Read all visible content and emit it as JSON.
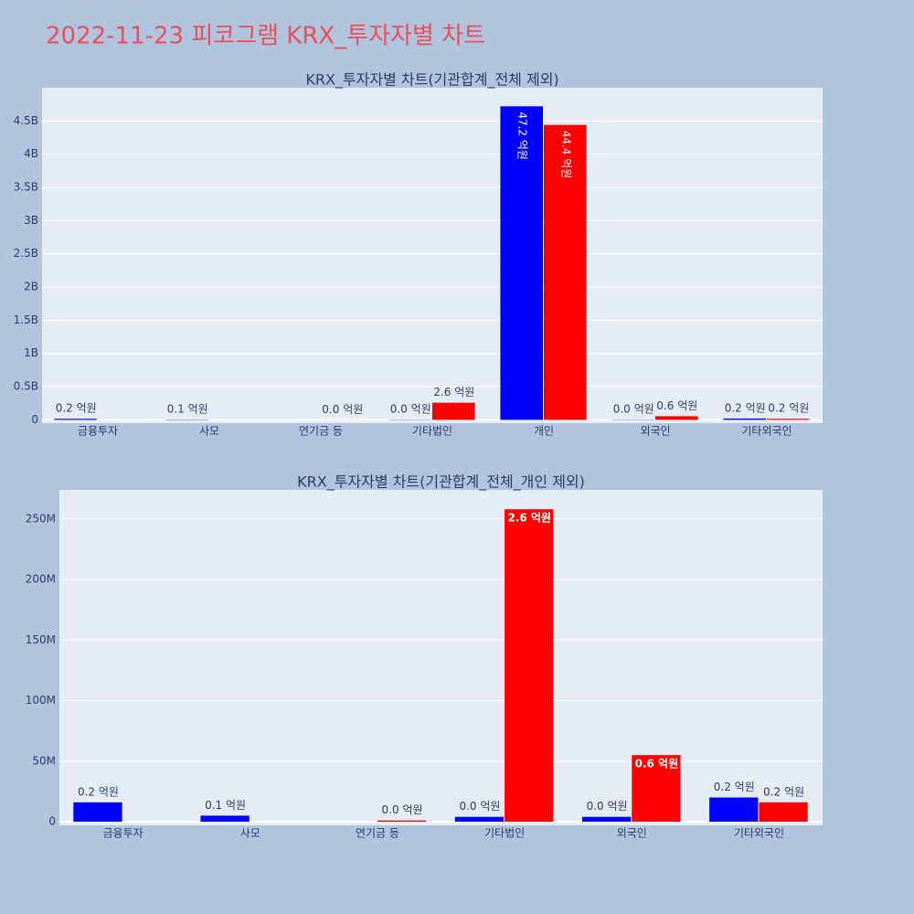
{
  "title": "2022-11-23 피코그램 KRX_투자자별 차트",
  "chart_data": [
    {
      "type": "bar",
      "title": "KRX_투자자별 차트(기관합계_전체 제외)",
      "categories": [
        "금융투자",
        "사모",
        "연기금 등",
        "기타법인",
        "개인",
        "외국인",
        "기타외국인"
      ],
      "series": [
        {
          "color": "#0000ff",
          "values": [
            16000000,
            5000000,
            null,
            4000000,
            4720000000,
            4000000,
            20000000
          ],
          "value_labels": [
            "0.2 억원",
            "0.1 억원",
            null,
            "0.0 억원",
            "47.2 억원",
            "0.0 억원",
            "0.2 억원"
          ]
        },
        {
          "color": "#ff0000",
          "values": [
            null,
            null,
            1000000,
            258000000,
            4440000000,
            55000000,
            16000000
          ],
          "value_labels": [
            null,
            null,
            "0.0 억원",
            "2.6 억원",
            "44.4 억원",
            "0.6 억원",
            "0.2 억원"
          ]
        }
      ],
      "ylim": [
        -50000000,
        5000000000
      ],
      "yticks": [
        0,
        {
          "value": 500000000,
          "label": "0.5B"
        },
        {
          "value": 1000000000,
          "label": "1B"
        },
        {
          "value": 1500000000,
          "label": "1.5B"
        },
        {
          "value": 2000000000,
          "label": "2B"
        },
        {
          "value": 2500000000,
          "label": "2.5B"
        },
        {
          "value": 3000000000,
          "label": "3B"
        },
        {
          "value": 3500000000,
          "label": "3.5B"
        },
        {
          "value": 4000000000,
          "label": "4B"
        },
        {
          "value": 4500000000,
          "label": "4.5B"
        }
      ],
      "grid": true
    },
    {
      "type": "bar",
      "title": "KRX_투자자별 차트(기관합계_전체_개인 제외)",
      "categories": [
        "금융투자",
        "사모",
        "연기금 등",
        "기타법인",
        "외국인",
        "기타외국인"
      ],
      "series": [
        {
          "color": "#0000ff",
          "values": [
            16000000,
            5000000,
            null,
            4000000,
            4000000,
            20000000
          ],
          "value_labels": [
            "0.2 억원",
            "0.1 억원",
            null,
            "0.0 억원",
            "0.0 억원",
            "0.2 억원"
          ]
        },
        {
          "color": "#ff0000",
          "values": [
            null,
            null,
            1000000,
            258000000,
            55000000,
            16000000
          ],
          "value_labels": [
            null,
            null,
            "0.0 억원",
            "2.6 억원",
            "0.6 억원",
            "0.2 억원"
          ]
        }
      ],
      "ylim": [
        -3000000,
        274000000
      ],
      "yticks": [
        0,
        {
          "value": 50000000,
          "label": "50M"
        },
        {
          "value": 100000000,
          "label": "100M"
        },
        {
          "value": 150000000,
          "label": "150M"
        },
        {
          "value": 200000000,
          "label": "200M"
        },
        {
          "value": 250000000,
          "label": "250M"
        }
      ],
      "grid": true
    }
  ]
}
